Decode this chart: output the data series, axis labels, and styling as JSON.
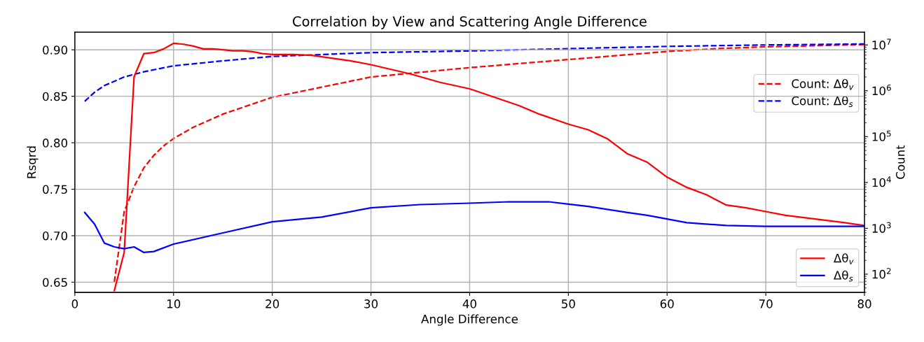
{
  "chart_data": {
    "type": "line",
    "title": "Correlation by View and Scattering Angle Difference",
    "xlabel": "Angle Difference",
    "ylabel": "Rsqrd",
    "y2label": "Count",
    "xlim": [
      0,
      80
    ],
    "xticks": [
      0,
      10,
      20,
      30,
      40,
      50,
      60,
      70,
      80
    ],
    "ylim": [
      0.639,
      0.919
    ],
    "yticks": [
      0.65,
      {
        "value": 0.7,
        "label": "0.70"
      },
      0.75,
      {
        "value": 0.8,
        "label": "0.80"
      },
      0.85,
      {
        "value": 0.9,
        "label": "0.90"
      }
    ],
    "y2lim": [
      40,
      19000000
    ],
    "y2ticks": [
      {
        "value": 100,
        "label": "10$^{2}$"
      },
      {
        "value": 1000,
        "label": "10$^{3}$"
      },
      {
        "value": 10000,
        "label": "10$^{4}$"
      },
      {
        "value": 100000,
        "label": "10$^{5}$"
      },
      {
        "value": 1000000,
        "label": "10$^{6}$"
      },
      {
        "value": 10000000,
        "label": "10$^{7}$"
      }
    ],
    "log": "y2",
    "grid": true,
    "legend": "right",
    "line_style": "solid",
    "marker": "none",
    "series": [
      {
        "name": "Δθ$_{v}$",
        "color": "#ff0000",
        "x": [
          4,
          5,
          6,
          7,
          8,
          9,
          10,
          11,
          12,
          13,
          14,
          15,
          16,
          17,
          18,
          19,
          20,
          22,
          24,
          26,
          28,
          30,
          34,
          37,
          40,
          45,
          47,
          50,
          52,
          54,
          56,
          58,
          60,
          62,
          64,
          66,
          68,
          70,
          72,
          75,
          78,
          80
        ],
        "values": [
          0.641,
          0.682,
          0.871,
          0.896,
          0.897,
          0.901,
          0.907,
          0.906,
          0.904,
          0.901,
          0.901,
          0.9,
          0.899,
          0.899,
          0.898,
          0.896,
          0.895,
          0.895,
          0.894,
          0.891,
          0.888,
          0.884,
          0.874,
          0.865,
          0.858,
          0.84,
          0.831,
          0.82,
          0.814,
          0.804,
          0.788,
          0.779,
          0.763,
          0.752,
          0.744,
          0.733,
          0.73,
          0.726,
          0.722,
          0.718,
          0.714,
          0.711
        ]
      },
      {
        "name": "Δθ$_{s}$",
        "color": "#0000ff",
        "x": [
          1,
          2,
          3,
          4,
          5,
          6,
          7,
          8,
          10,
          15,
          20,
          25,
          30,
          35,
          40,
          44,
          48,
          50,
          52,
          56,
          58,
          60,
          62,
          66,
          70,
          75,
          80
        ],
        "values": [
          0.725,
          0.7125,
          0.692,
          0.688,
          0.686,
          0.688,
          0.682,
          0.683,
          0.691,
          0.703,
          0.715,
          0.72,
          0.73,
          0.7335,
          0.735,
          0.7365,
          0.7365,
          0.734,
          0.7315,
          0.725,
          0.722,
          0.718,
          0.714,
          0.711,
          0.71,
          0.71,
          0.71
        ]
      },
      {
        "name": "Count: Δθ$_{v}$",
        "color": "#ff0000",
        "axis": "y2",
        "line_style": "dashed",
        "x": [
          4,
          5,
          6,
          7,
          8,
          9,
          10,
          12,
          15,
          20,
          25,
          30,
          40,
          50,
          60,
          65,
          70,
          80
        ],
        "values": [
          68,
          2300,
          8100,
          21000,
          39000,
          63000,
          91000,
          160000,
          310000,
          720000,
          1200000,
          2000000,
          3200000,
          4800000,
          7200000,
          8300000,
          9100000,
          10200000
        ]
      },
      {
        "name": "Count: Δθ$_{s}$",
        "color": "#0000ff",
        "axis": "y2",
        "line_style": "dashed",
        "x": [
          1,
          2,
          3,
          5,
          7,
          10,
          15,
          20,
          30,
          40,
          50,
          60,
          70,
          80
        ],
        "values": [
          590000,
          930000,
          1300000,
          2000000,
          2600000,
          3500000,
          4500000,
          5600000,
          6800000,
          7400000,
          8300000,
          9300000,
          10000000,
          10500000
        ]
      }
    ]
  }
}
